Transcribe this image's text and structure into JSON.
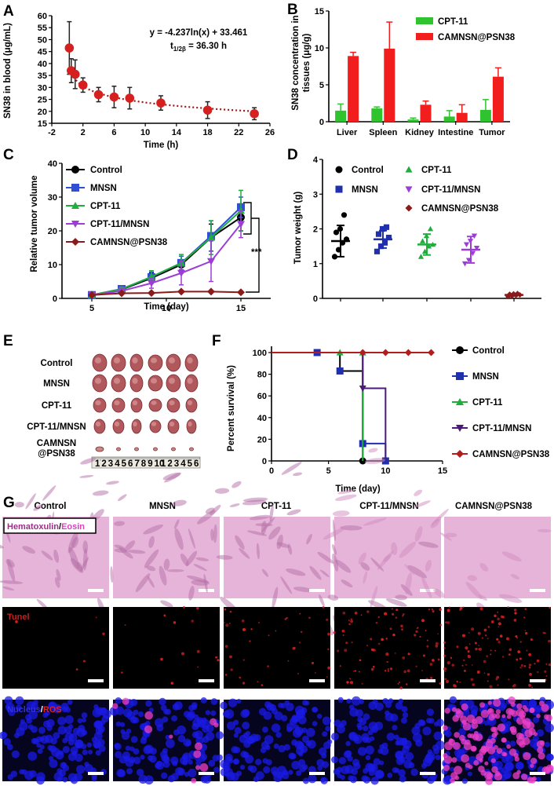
{
  "panels": {
    "A": "A",
    "B": "B",
    "C": "C",
    "D": "D",
    "E": "E",
    "F": "F",
    "G": "G"
  },
  "chart_data": [
    {
      "id": "A",
      "type": "scatter",
      "xlabel": "Time (h)",
      "ylabel": "SN38 in blood (μg/mL)",
      "xlim": [
        -2,
        26
      ],
      "ylim": [
        15,
        60
      ],
      "xticks": [
        -2,
        2,
        6,
        10,
        14,
        18,
        22,
        26
      ],
      "yticks": [
        15,
        20,
        25,
        30,
        35,
        40,
        45,
        50,
        55,
        60
      ],
      "x": [
        0.25,
        0.5,
        1,
        2,
        4,
        6,
        8,
        12,
        18,
        24
      ],
      "y": [
        46.5,
        37,
        35.5,
        31,
        27,
        26,
        25.5,
        23.5,
        20.5,
        19
      ],
      "err": [
        11,
        5,
        6,
        3,
        3,
        4.5,
        4.5,
        3,
        3.5,
        2.5
      ],
      "fit_a": -4.237,
      "fit_b": 33.461,
      "equation": "y = -4.237ln(x) + 33.461",
      "halflife_prefix": "t",
      "halflife_sub": "1/2β",
      "halflife_value": " = 36.30 h",
      "color": "#d62020"
    },
    {
      "id": "B",
      "type": "bar",
      "ylabel_line1": "SN38 concentration in",
      "ylabel_line2": "tissues (μg/g)",
      "categories": [
        "Liver",
        "Spleen",
        "Kidney",
        "Intestine",
        "Tumor"
      ],
      "ylim": [
        0,
        15
      ],
      "yticks": [
        0,
        5,
        10,
        15
      ],
      "series": [
        {
          "name": "CPT-11",
          "color": "#2fc42f",
          "values": [
            1.5,
            1.8,
            0.3,
            0.7,
            1.6
          ],
          "err": [
            0.9,
            0.2,
            0.2,
            0.8,
            1.4
          ]
        },
        {
          "name": "CAMNSN@PSN38",
          "color": "#f21d1d",
          "values": [
            8.9,
            9.9,
            2.3,
            1.2,
            6.1
          ],
          "err": [
            0.5,
            3.6,
            0.5,
            1.1,
            1.2
          ]
        }
      ]
    },
    {
      "id": "C",
      "type": "line",
      "xlabel": "Time (day)",
      "ylabel": "Relative tumor volume",
      "xlim": [
        3,
        17
      ],
      "ylim": [
        0,
        40
      ],
      "xticks": [
        5,
        10,
        15
      ],
      "yticks": [
        0,
        10,
        20,
        30,
        40
      ],
      "x": [
        5,
        7,
        9,
        11,
        13,
        15
      ],
      "significance": "***",
      "series": [
        {
          "name": "Control",
          "color": "#000000",
          "marker": "circle",
          "values": [
            1,
            2.6,
            6,
            10,
            18,
            24
          ],
          "err": [
            0.2,
            0.5,
            1.5,
            2.5,
            4,
            4
          ]
        },
        {
          "name": "MNSN",
          "color": "#2f4fd6",
          "marker": "square",
          "values": [
            1,
            2.8,
            6.3,
            10.5,
            18.5,
            27
          ],
          "err": [
            0.2,
            0.5,
            1.5,
            2,
            4.5,
            3
          ]
        },
        {
          "name": "CPT-11",
          "color": "#1fae3c",
          "marker": "triangle",
          "values": [
            1,
            2.7,
            6.4,
            10.5,
            18,
            26
          ],
          "err": [
            0.2,
            0.6,
            1.8,
            2.5,
            5,
            6
          ]
        },
        {
          "name": "CPT-11/MNSN",
          "color": "#9b3dd6",
          "marker": "triangle-down",
          "values": [
            1,
            2.2,
            4.5,
            7.5,
            11,
            22
          ],
          "err": [
            0.2,
            0.6,
            1.5,
            3.5,
            6,
            4
          ]
        },
        {
          "name": "CAMNSN@PSN38",
          "color": "#8b1a1a",
          "marker": "diamond",
          "values": [
            1,
            1.5,
            1.6,
            2,
            2,
            1.8
          ],
          "err": [
            0.1,
            0.2,
            0.2,
            0.2,
            0.2,
            0.2
          ]
        }
      ]
    },
    {
      "id": "D",
      "type": "scatter",
      "ylabel": "Tumor weight (g)",
      "ylim": [
        0,
        4
      ],
      "yticks": [
        0,
        1,
        2,
        3,
        4
      ],
      "groups": [
        {
          "name": "Control",
          "color": "#000000",
          "marker": "circle",
          "mean": 1.65,
          "sd": 0.45,
          "points": [
            1.2,
            1.4,
            1.6,
            1.7,
            1.9,
            2.0,
            2.4
          ]
        },
        {
          "name": "MNSN",
          "color": "#1f2fae",
          "marker": "square",
          "mean": 1.7,
          "sd": 0.25,
          "points": [
            1.35,
            1.5,
            1.6,
            1.75,
            1.85,
            2.0,
            2.05
          ]
        },
        {
          "name": "CPT-11",
          "color": "#1fae3c",
          "marker": "triangle",
          "mean": 1.55,
          "sd": 0.3,
          "points": [
            1.2,
            1.35,
            1.5,
            1.55,
            1.65,
            1.8,
            2.0
          ]
        },
        {
          "name": "CPT-11/MNSN",
          "color": "#9b3dd6",
          "marker": "triangle-down",
          "mean": 1.4,
          "sd": 0.38,
          "points": [
            1.0,
            1.1,
            1.3,
            1.45,
            1.55,
            1.65,
            1.8
          ]
        },
        {
          "name": "CAMNSN@PSN38",
          "color": "#8b1a1a",
          "marker": "diamond",
          "mean": 0.1,
          "sd": 0.03,
          "points": [
            0.05,
            0.07,
            0.09,
            0.1,
            0.12,
            0.13,
            0.14
          ]
        }
      ]
    },
    {
      "id": "F",
      "type": "line",
      "xlabel": "Time (day)",
      "ylabel": "Percent survival (%)",
      "xlim": [
        0,
        15
      ],
      "ylim": [
        0,
        100
      ],
      "xticks": [
        0,
        5,
        10,
        15
      ],
      "yticks": [
        0,
        20,
        40,
        60,
        80,
        100
      ],
      "series": [
        {
          "name": "Control",
          "color": "#000000",
          "marker": "circle",
          "steps": [
            [
              0,
              100
            ],
            [
              6,
              100
            ],
            [
              6,
              83
            ],
            [
              8,
              83
            ],
            [
              8,
              0
            ]
          ],
          "marks": [
            [
              8,
              0
            ]
          ]
        },
        {
          "name": "MNSN",
          "color": "#1f2fae",
          "marker": "square",
          "steps": [
            [
              0,
              100
            ],
            [
              8,
              100
            ],
            [
              8,
              16
            ],
            [
              10,
              16
            ],
            [
              10,
              0
            ]
          ],
          "marks": [
            [
              4,
              100
            ],
            [
              6,
              83
            ],
            [
              8,
              16
            ],
            [
              10,
              0
            ]
          ]
        },
        {
          "name": "CPT-11",
          "color": "#1fae3c",
          "marker": "triangle",
          "steps": [
            [
              0,
              100
            ],
            [
              8,
              100
            ],
            [
              8,
              0
            ]
          ],
          "marks": [
            [
              6,
              100
            ],
            [
              8,
              100
            ]
          ]
        },
        {
          "name": "CPT-11/MNSN",
          "color": "#4b1a7a",
          "marker": "triangle-down",
          "steps": [
            [
              0,
              100
            ],
            [
              8,
              100
            ],
            [
              8,
              67
            ],
            [
              10,
              67
            ],
            [
              10,
              0
            ]
          ],
          "marks": [
            [
              8,
              67
            ]
          ]
        },
        {
          "name": "CAMNSN@PSN38",
          "color": "#b21e1e",
          "marker": "diamond",
          "steps": [
            [
              0,
              100
            ],
            [
              14,
              100
            ]
          ],
          "marks": [
            [
              8,
              100
            ],
            [
              10,
              100
            ],
            [
              12,
              100
            ],
            [
              14,
              100
            ]
          ]
        }
      ]
    }
  ],
  "photo_E": {
    "rows": [
      "Control",
      "MNSN",
      "CPT-11",
      "CPT-11/MNSN",
      "CAMNSN\n@PSN38"
    ],
    "row_line1": [
      "Control",
      "MNSN",
      "CPT-11",
      "CPT-11/MNSN",
      "CAMNSN"
    ],
    "row_line2": [
      "",
      "",
      "",
      "",
      "@PSN38"
    ],
    "ruler_digits": [
      "1",
      "2",
      "3",
      "4",
      "5",
      "6",
      "7",
      "8",
      "9",
      "10",
      "1",
      "2",
      "3",
      "4",
      "5",
      "6"
    ]
  },
  "histology_G": {
    "columns": [
      "Control",
      "MNSN",
      "CPT-11",
      "CPT-11/MNSN",
      "CAMNSN@PSN38"
    ],
    "rows": [
      {
        "label_a": "Hematoxulin",
        "sep": "/",
        "label_b": "Eosin",
        "color_a": "#9a2f8a",
        "color_b": "#d642c2",
        "bg": "#e6b4d9"
      },
      {
        "label_a": "Tunel",
        "sep": "",
        "label_b": "",
        "color_a": "#c22020",
        "color_b": "#c22020",
        "bg": "#000000"
      },
      {
        "label_a": "Nucleus",
        "sep": "/",
        "label_b": "ROS",
        "color_a": "#3030e0",
        "color_b": "#e02020",
        "bg": "#050520"
      }
    ]
  }
}
